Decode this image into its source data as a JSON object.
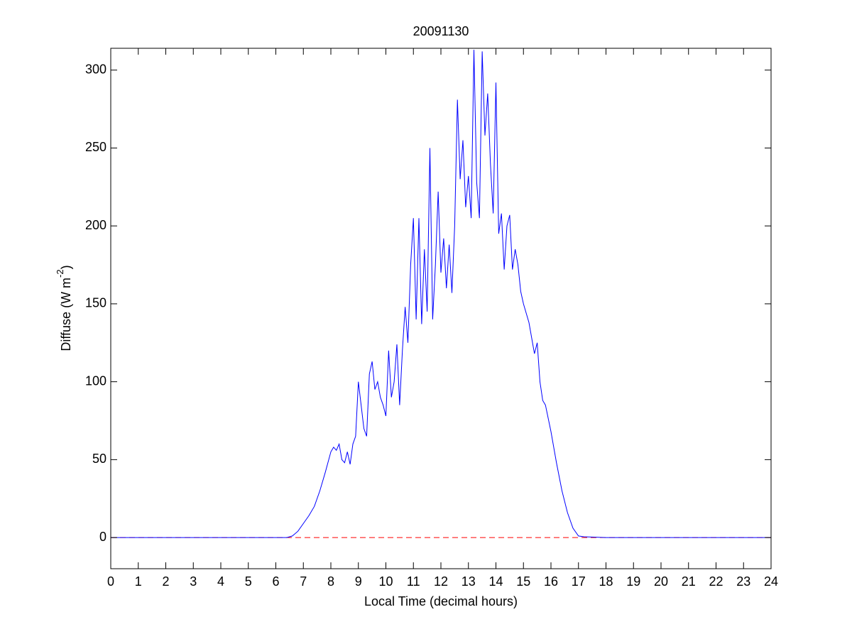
{
  "chart_data": {
    "type": "line",
    "title": "20091130",
    "xlabel": "Local Time (decimal hours)",
    "ylabel": {
      "text": "Diffuse (W m",
      "superscript": "-2",
      "suffix": ")"
    },
    "x": [
      0,
      6,
      6.4,
      6.6,
      6.8,
      7.0,
      7.2,
      7.4,
      7.6,
      7.8,
      8.0,
      8.1,
      8.2,
      8.3,
      8.4,
      8.5,
      8.6,
      8.7,
      8.8,
      8.9,
      9.0,
      9.1,
      9.2,
      9.3,
      9.4,
      9.5,
      9.6,
      9.7,
      9.8,
      9.9,
      10.0,
      10.1,
      10.2,
      10.3,
      10.4,
      10.5,
      10.6,
      10.7,
      10.8,
      10.9,
      11.0,
      11.1,
      11.2,
      11.3,
      11.4,
      11.5,
      11.6,
      11.7,
      11.8,
      11.9,
      12.0,
      12.1,
      12.2,
      12.3,
      12.4,
      12.5,
      12.6,
      12.7,
      12.8,
      12.9,
      13.0,
      13.1,
      13.2,
      13.3,
      13.4,
      13.5,
      13.6,
      13.7,
      13.8,
      13.9,
      14.0,
      14.1,
      14.2,
      14.3,
      14.4,
      14.5,
      14.6,
      14.7,
      14.8,
      14.9,
      15.0,
      15.2,
      15.4,
      15.5,
      15.6,
      15.7,
      15.8,
      16.0,
      16.2,
      16.4,
      16.6,
      16.8,
      17.0,
      17.2,
      18,
      24
    ],
    "series": [
      {
        "name": "Diffuse",
        "color": "#0000ff",
        "values": [
          0,
          0,
          0,
          1,
          4,
          9,
          14,
          20,
          30,
          42,
          55,
          58,
          56,
          60,
          50,
          48,
          55,
          47,
          60,
          65,
          100,
          85,
          70,
          65,
          105,
          113,
          95,
          100,
          90,
          85,
          78,
          120,
          90,
          100,
          124,
          85,
          120,
          148,
          125,
          175,
          205,
          140,
          205,
          137,
          185,
          145,
          250,
          140,
          175,
          222,
          170,
          192,
          160,
          188,
          157,
          200,
          281,
          230,
          255,
          212,
          232,
          205,
          313,
          228,
          205,
          312,
          258,
          285,
          240,
          208,
          292,
          195,
          208,
          172,
          200,
          207,
          172,
          185,
          175,
          158,
          150,
          138,
          118,
          125,
          100,
          88,
          85,
          68,
          48,
          30,
          16,
          6,
          1,
          0.5,
          0,
          0
        ]
      }
    ],
    "reference_line": {
      "y": 0,
      "color": "#ff0000",
      "style": "dashed"
    },
    "xlim": [
      0,
      24
    ],
    "xticks": [
      0,
      1,
      2,
      3,
      4,
      5,
      6,
      7,
      8,
      9,
      10,
      11,
      12,
      13,
      14,
      15,
      16,
      17,
      18,
      19,
      20,
      21,
      22,
      23,
      24
    ],
    "ylim": [
      -20,
      314
    ],
    "yticks": [
      0,
      50,
      100,
      150,
      200,
      250,
      300
    ],
    "grid": false
  }
}
